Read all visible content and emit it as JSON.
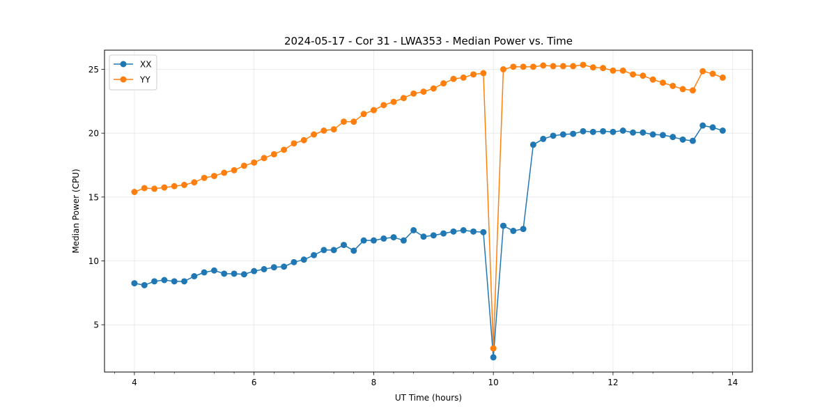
{
  "chart_data": {
    "type": "line",
    "title": "2024-05-17 - Cor 31 - LWA353 - Median Power vs. Time",
    "xlabel": "UT Time (hours)",
    "ylabel": "Median Power (CPU)",
    "xlim": [
      3.5,
      14.33
    ],
    "ylim": [
      1.3,
      26.5
    ],
    "xticks": [
      4,
      6,
      8,
      10,
      12,
      14
    ],
    "xminor_ticks": [
      3.6667,
      4.3333,
      4.6667,
      5.3333,
      5.6667,
      6.3333,
      6.6667,
      7.3333,
      7.6667,
      8.3333,
      8.6667,
      9.3333,
      9.6667,
      10.3333,
      10.6667,
      11.3333,
      11.6667,
      12.3333,
      12.6667,
      13.3333,
      13.6667,
      14.3333
    ],
    "yticks": [
      5,
      10,
      15,
      20,
      25
    ],
    "grid": true,
    "legend_position": "top-left",
    "x": [
      4.0,
      4.1667,
      4.3333,
      4.5,
      4.6667,
      4.8333,
      5.0,
      5.1667,
      5.3333,
      5.5,
      5.6667,
      5.8333,
      6.0,
      6.1667,
      6.3333,
      6.5,
      6.6667,
      6.8333,
      7.0,
      7.1667,
      7.3333,
      7.5,
      7.6667,
      7.8333,
      8.0,
      8.1667,
      8.3333,
      8.5,
      8.6667,
      8.8333,
      9.0,
      9.1667,
      9.3333,
      9.5,
      9.6667,
      9.8333,
      10.0,
      10.1667,
      10.3333,
      10.5,
      10.6667,
      10.8333,
      11.0,
      11.1667,
      11.3333,
      11.5,
      11.6667,
      11.8333,
      12.0,
      12.1667,
      12.3333,
      12.5,
      12.6667,
      12.8333,
      13.0,
      13.1667,
      13.3333,
      13.5,
      13.6667,
      13.8333
    ],
    "series": [
      {
        "name": "XX",
        "color": "#1f77b4",
        "values": [
          8.25,
          8.1,
          8.4,
          8.5,
          8.4,
          8.4,
          8.8,
          9.1,
          9.25,
          9.0,
          9.0,
          8.95,
          9.2,
          9.35,
          9.5,
          9.55,
          9.9,
          10.1,
          10.45,
          10.85,
          10.85,
          11.25,
          10.8,
          11.6,
          11.6,
          11.75,
          11.85,
          11.6,
          12.4,
          11.9,
          12.0,
          12.15,
          12.3,
          12.4,
          12.3,
          12.25,
          2.45,
          12.75,
          12.35,
          12.5,
          19.1,
          19.55,
          19.8,
          19.9,
          19.95,
          20.15,
          20.1,
          20.15,
          20.1,
          20.2,
          20.05,
          20.05,
          19.9,
          19.85,
          19.7,
          19.5,
          19.4,
          20.6,
          20.45,
          20.2
        ]
      },
      {
        "name": "YY",
        "color": "#ff7f0e",
        "values": [
          15.4,
          15.7,
          15.65,
          15.75,
          15.85,
          15.95,
          16.15,
          16.5,
          16.65,
          16.9,
          17.1,
          17.45,
          17.7,
          18.05,
          18.35,
          18.7,
          19.2,
          19.45,
          19.9,
          20.2,
          20.3,
          20.9,
          20.9,
          21.5,
          21.8,
          22.2,
          22.45,
          22.75,
          23.1,
          23.25,
          23.5,
          23.9,
          24.25,
          24.35,
          24.6,
          24.7,
          3.15,
          25.0,
          25.2,
          25.2,
          25.2,
          25.3,
          25.25,
          25.25,
          25.25,
          25.35,
          25.15,
          25.1,
          24.9,
          24.9,
          24.6,
          24.5,
          24.2,
          23.95,
          23.7,
          23.45,
          23.35,
          24.85,
          24.65,
          24.35
        ]
      }
    ]
  }
}
